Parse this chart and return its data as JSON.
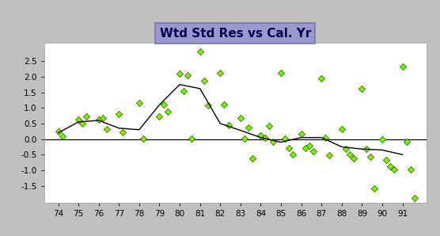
{
  "title": "Wtd Std Res vs Cal. Yr",
  "bg_color": "#c0c0c0",
  "plot_bg": "#ffffff",
  "title_box_color": "#9999cc",
  "title_box_edge": "#7777aa",
  "xlim": [
    73.3,
    92.2
  ],
  "ylim": [
    -2.05,
    3.1
  ],
  "yticks": [
    -1.5,
    -1.0,
    -0.5,
    0.0,
    0.5,
    1.0,
    1.5,
    2.0,
    2.5
  ],
  "xticks": [
    74,
    75,
    76,
    77,
    78,
    79,
    80,
    81,
    82,
    83,
    84,
    85,
    86,
    87,
    88,
    89,
    90,
    91
  ],
  "scatter_color": "#66ff00",
  "scatter_edge": "#663300",
  "line_color": "#000000",
  "hline_color": "#000000",
  "scatter_data": [
    [
      74.0,
      0.25
    ],
    [
      74.2,
      0.1
    ],
    [
      75.0,
      0.62
    ],
    [
      75.2,
      0.5
    ],
    [
      75.4,
      0.72
    ],
    [
      76.0,
      0.62
    ],
    [
      76.2,
      0.68
    ],
    [
      76.4,
      0.32
    ],
    [
      77.0,
      0.8
    ],
    [
      77.2,
      0.22
    ],
    [
      78.0,
      1.15
    ],
    [
      78.2,
      0.02
    ],
    [
      79.0,
      0.72
    ],
    [
      79.2,
      1.12
    ],
    [
      79.4,
      0.88
    ],
    [
      80.0,
      2.1
    ],
    [
      80.2,
      1.55
    ],
    [
      80.4,
      2.05
    ],
    [
      80.6,
      0.02
    ],
    [
      81.0,
      2.82
    ],
    [
      81.2,
      1.88
    ],
    [
      81.4,
      1.08
    ],
    [
      82.0,
      2.12
    ],
    [
      82.2,
      1.12
    ],
    [
      82.4,
      0.45
    ],
    [
      83.0,
      0.68
    ],
    [
      83.2,
      0.02
    ],
    [
      83.4,
      0.38
    ],
    [
      83.6,
      -0.62
    ],
    [
      84.0,
      0.12
    ],
    [
      84.2,
      0.05
    ],
    [
      84.4,
      0.42
    ],
    [
      84.6,
      -0.08
    ],
    [
      85.0,
      2.12
    ],
    [
      85.2,
      0.02
    ],
    [
      85.4,
      -0.28
    ],
    [
      85.6,
      -0.48
    ],
    [
      86.0,
      0.18
    ],
    [
      86.2,
      -0.28
    ],
    [
      86.4,
      -0.22
    ],
    [
      86.6,
      -0.38
    ],
    [
      87.0,
      1.95
    ],
    [
      87.2,
      0.05
    ],
    [
      87.4,
      -0.52
    ],
    [
      88.0,
      0.32
    ],
    [
      88.2,
      -0.32
    ],
    [
      88.4,
      -0.48
    ],
    [
      88.6,
      -0.62
    ],
    [
      89.0,
      1.62
    ],
    [
      89.2,
      -0.32
    ],
    [
      89.4,
      -0.58
    ],
    [
      89.6,
      -1.58
    ],
    [
      90.0,
      -0.02
    ],
    [
      90.2,
      -0.68
    ],
    [
      90.4,
      -0.88
    ],
    [
      90.6,
      -0.98
    ],
    [
      91.0,
      2.32
    ],
    [
      91.2,
      -0.08
    ],
    [
      91.4,
      -0.98
    ],
    [
      91.6,
      -1.88
    ]
  ],
  "line_x": [
    74,
    75,
    76,
    77,
    78,
    79,
    80,
    81,
    82,
    83,
    84,
    85,
    86,
    87,
    88,
    89,
    90,
    91
  ],
  "line_y": [
    0.2,
    0.55,
    0.6,
    0.35,
    0.3,
    1.1,
    1.75,
    1.62,
    0.5,
    0.28,
    0.05,
    -0.1,
    0.05,
    0.05,
    -0.25,
    -0.32,
    -0.35,
    -0.5
  ]
}
